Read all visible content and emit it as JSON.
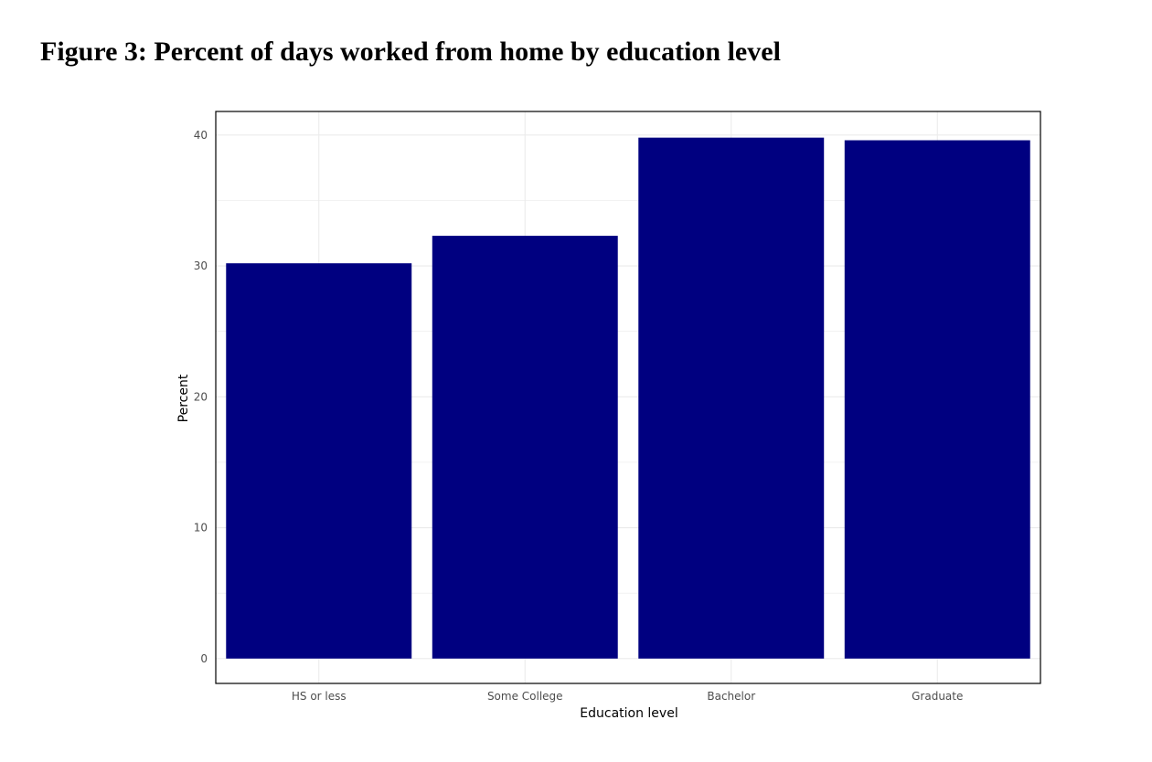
{
  "figure_title": "Figure 3: Percent of days worked from home by education level",
  "colors": {
    "bar": "#000080",
    "grid": "#ebebeb",
    "axis": "#000000"
  },
  "chart_data": {
    "type": "bar",
    "categories": [
      "HS or less",
      "Some College",
      "Bachelor",
      "Graduate"
    ],
    "values": [
      30.2,
      32.3,
      39.8,
      39.6
    ],
    "title": "",
    "xlabel": "Education level",
    "ylabel": "Percent",
    "ylim": [
      -1.9,
      41.8
    ],
    "yticks": [
      0,
      10,
      20,
      30,
      40
    ],
    "grid": true,
    "legend": "none"
  }
}
